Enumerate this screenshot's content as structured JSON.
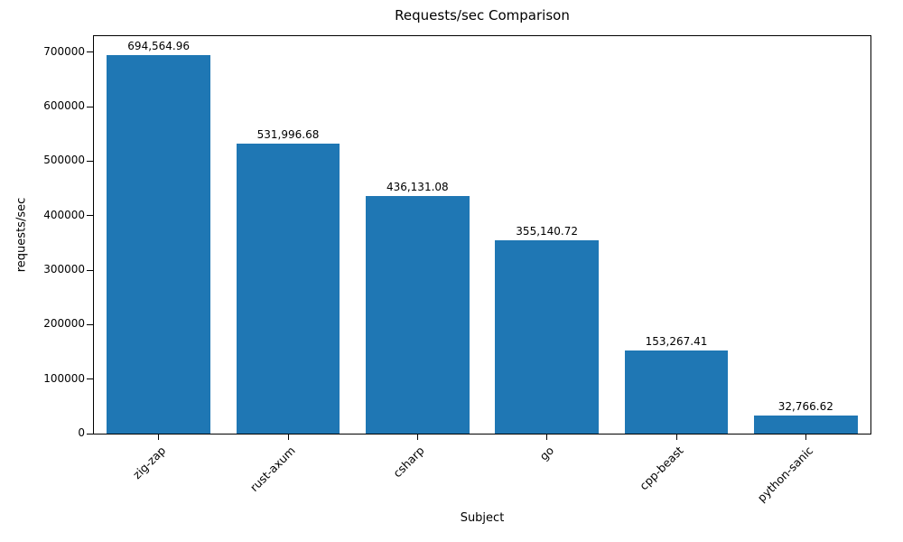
{
  "chart_data": {
    "type": "bar",
    "title": "Requests/sec Comparison",
    "xlabel": "Subject",
    "ylabel": "requests/sec",
    "categories": [
      "zig-zap",
      "rust-axum",
      "csharp",
      "go",
      "cpp-beast",
      "python-sanic"
    ],
    "values": [
      694564.96,
      531996.68,
      436131.08,
      355140.72,
      153267.41,
      32766.62
    ],
    "value_labels": [
      "694,564.96",
      "531,996.68",
      "436,131.08",
      "355,140.72",
      "153,267.41",
      "32,766.62"
    ],
    "yticks": [
      0,
      100000,
      200000,
      300000,
      400000,
      500000,
      600000,
      700000
    ],
    "ylim": [
      0,
      729293
    ],
    "bar_color": "#1f77b4",
    "grid": false,
    "legend_position": "none"
  }
}
